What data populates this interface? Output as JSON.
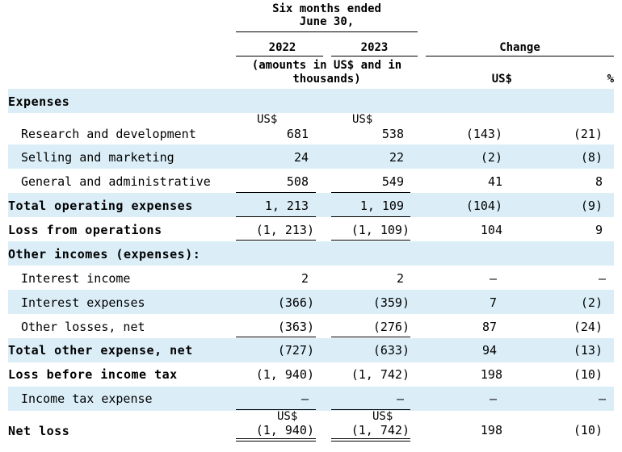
{
  "header": {
    "period_line1": "Six  months ended",
    "period_line2": "June  30,",
    "year1": "2022",
    "year2": "2023",
    "change": "Change",
    "units_line1": "(amounts in US$ and in",
    "units_line2": "thousands)",
    "col_usd": "US$",
    "col_pct": "%"
  },
  "currency": "US$",
  "rows": [
    {
      "label": "Expenses",
      "v2022": "",
      "v2023": "",
      "usd": "",
      "pct": ""
    },
    {
      "label": "Research and development",
      "v2022": "681",
      "v2023": "538",
      "usd": "(143)",
      "pct": "(21)"
    },
    {
      "label": "Selling and marketing",
      "v2022": "24",
      "v2023": "22",
      "usd": "(2)",
      "pct": "(8)"
    },
    {
      "label": "General and administrative",
      "v2022": "508",
      "v2023": "549",
      "usd": "41",
      "pct": "8"
    },
    {
      "label": "Total operating expenses",
      "v2022": "1, 213",
      "v2023": "1, 109",
      "usd": "(104)",
      "pct": "(9)"
    },
    {
      "label": "Loss from operations",
      "v2022": "(1, 213)",
      "v2023": "(1, 109)",
      "usd": "104",
      "pct": "9"
    },
    {
      "label": "Other incomes (expenses):",
      "v2022": "",
      "v2023": "",
      "usd": "",
      "pct": ""
    },
    {
      "label": "Interest income",
      "v2022": "2",
      "v2023": "2",
      "usd": "—",
      "pct": "—"
    },
    {
      "label": "Interest expenses",
      "v2022": "(366)",
      "v2023": "(359)",
      "usd": "7",
      "pct": "(2)"
    },
    {
      "label": "Other losses, net",
      "v2022": "(363)",
      "v2023": "(276)",
      "usd": "87",
      "pct": "(24)"
    },
    {
      "label": "Total other expense, net",
      "v2022": "(727)",
      "v2023": "(633)",
      "usd": "94",
      "pct": "(13)"
    },
    {
      "label": "Loss before income tax",
      "v2022": "(1, 940)",
      "v2023": "(1, 742)",
      "usd": "198",
      "pct": "(10)"
    },
    {
      "label": "Income tax expense",
      "v2022": "—",
      "v2023": "—",
      "usd": "—",
      "pct": "—"
    },
    {
      "label": "Net loss",
      "v2022": "(1, 940)",
      "v2023": "(1, 742)",
      "usd": "198",
      "pct": "(10)"
    }
  ]
}
